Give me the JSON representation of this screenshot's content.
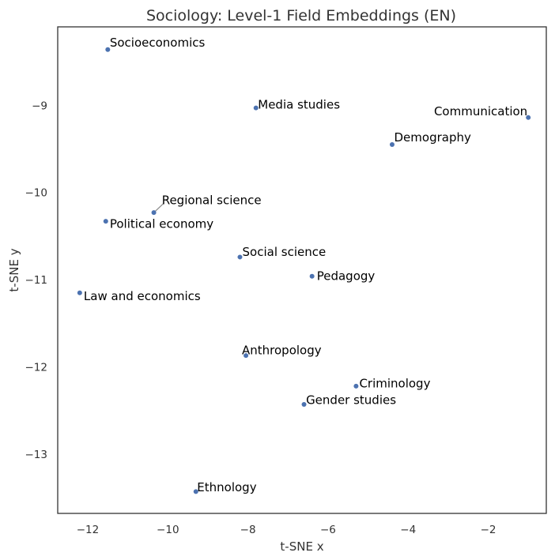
{
  "chart_data": {
    "type": "scatter",
    "title": "Sociology: Level-1 Field Embeddings (EN)",
    "xlabel": "t-SNE x",
    "ylabel": "t-SNE y",
    "xlim": [
      -12.75,
      -0.55
    ],
    "ylim": [
      -13.68,
      -8.1
    ],
    "xticks": [
      -12,
      -10,
      -8,
      -6,
      -4,
      -2
    ],
    "yticks": [
      -13,
      -12,
      -11,
      -10,
      -9
    ],
    "grid": false,
    "colors": {
      "point": "#4c72b0",
      "leader": "#888888",
      "frame": "#333333"
    },
    "points": [
      {
        "label": "Socioeconomics",
        "x": -11.5,
        "y": -8.36,
        "anchor": "start",
        "lx": 0.05,
        "ly": 0.08
      },
      {
        "label": "Media studies",
        "x": -7.8,
        "y": -9.03,
        "anchor": "start",
        "lx": 0.05,
        "ly": 0.04
      },
      {
        "label": "Communication",
        "x": -1.0,
        "y": -9.14,
        "anchor": "end",
        "lx": -0.02,
        "ly": 0.07
      },
      {
        "label": "Demography",
        "x": -4.4,
        "y": -9.45,
        "anchor": "start",
        "lx": 0.05,
        "ly": 0.08
      },
      {
        "label": "Regional science",
        "x": -10.35,
        "y": -10.23,
        "anchor": "start",
        "lx": 0.2,
        "ly": 0.14,
        "leader": true
      },
      {
        "label": "Political economy",
        "x": -11.55,
        "y": -10.33,
        "anchor": "start",
        "lx": 0.1,
        "ly": -0.03
      },
      {
        "label": "Social science",
        "x": -8.2,
        "y": -10.74,
        "anchor": "start",
        "lx": 0.06,
        "ly": 0.06
      },
      {
        "label": "Pedagogy",
        "x": -6.4,
        "y": -10.96,
        "anchor": "start",
        "lx": 0.12,
        "ly": 0.0
      },
      {
        "label": "Law and economics",
        "x": -12.2,
        "y": -11.15,
        "anchor": "start",
        "lx": 0.1,
        "ly": -0.04
      },
      {
        "label": "Anthropology",
        "x": -8.05,
        "y": -11.87,
        "anchor": "start",
        "lx": -0.1,
        "ly": 0.06
      },
      {
        "label": "Criminology",
        "x": -5.3,
        "y": -12.22,
        "anchor": "start",
        "lx": 0.08,
        "ly": 0.03
      },
      {
        "label": "Gender studies",
        "x": -6.6,
        "y": -12.43,
        "anchor": "start",
        "lx": 0.05,
        "ly": 0.05
      },
      {
        "label": "Ethnology",
        "x": -9.3,
        "y": -13.43,
        "anchor": "start",
        "lx": 0.03,
        "ly": 0.05
      }
    ]
  }
}
